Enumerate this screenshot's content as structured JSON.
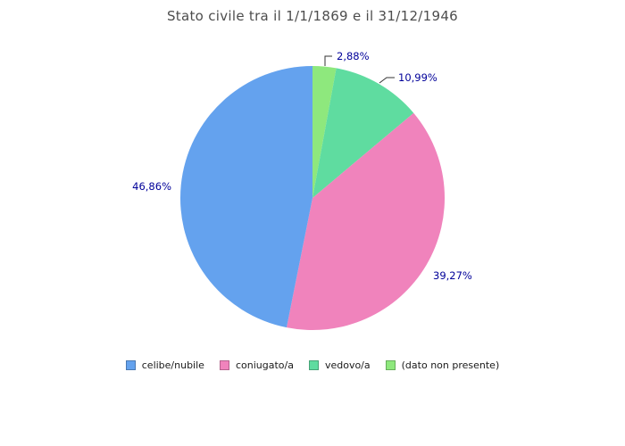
{
  "chart_data": {
    "type": "pie",
    "title": "Stato civile tra il 1/1/1869 e il 31/12/1946",
    "unit": "%",
    "decimal_separator": ",",
    "legend_position": "bottom",
    "start_angle_deg": 0,
    "direction": "clockwise",
    "slices": [
      {
        "label": "celibe/nubile",
        "value": 46.86,
        "pct_label": "46,86%",
        "color": "#64A2EE",
        "border": "#4a79b2"
      },
      {
        "label": "coniugato/a",
        "value": 39.27,
        "pct_label": "39,27%",
        "color": "#F083BC",
        "border": "#b4628d"
      },
      {
        "label": "vedovo/a",
        "value": 10.99,
        "pct_label": "10,99%",
        "color": "#5FDCA0",
        "border": "#47a377"
      },
      {
        "label": "(dato non presente)",
        "value": 2.88,
        "pct_label": "2,88%",
        "color": "#8EE87D",
        "border": "#67ad5b"
      }
    ]
  },
  "colors": {
    "title_text": "#4d4d4d",
    "percent_label_text": "#000099",
    "legend_text": "#1a1a1a",
    "leader_line": "#333333",
    "background": "#ffffff"
  }
}
